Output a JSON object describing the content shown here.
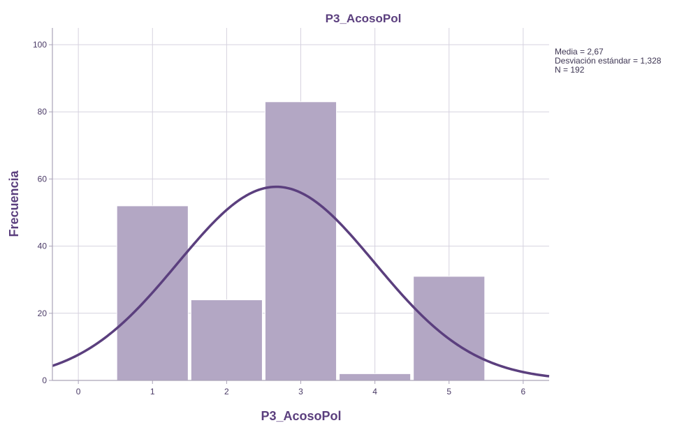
{
  "colors": {
    "accent": "#5b3f7e",
    "bar_fill": "#b3a7c4",
    "grid": "#d6d2df",
    "axis": "#aaa3b8",
    "tick_text": "#4a3a66",
    "stats_text": "#3d3552"
  },
  "chart_data": {
    "type": "bar",
    "title": "P3_AcosoPol",
    "xlabel": "P3_AcosoPol",
    "ylabel": "Frecuencia",
    "x": [
      1,
      2,
      3,
      4,
      5
    ],
    "values": [
      52,
      24,
      83,
      2,
      31
    ],
    "xlim": [
      -0.35,
      6.35
    ],
    "ylim": [
      0,
      105
    ],
    "x_ticks": [
      0,
      1,
      2,
      3,
      4,
      5,
      6
    ],
    "y_ticks": [
      0,
      20,
      40,
      60,
      80,
      100
    ],
    "grid": true,
    "normal_curve": {
      "mean": 2.67,
      "sd": 1.328,
      "n": 192,
      "bin_width": 1
    },
    "stats": {
      "mean_label": "Media = 2,67",
      "sd_label": "Desviación estándar = 1,328",
      "n_label": "N = 192"
    },
    "legend_position": "top-right"
  }
}
